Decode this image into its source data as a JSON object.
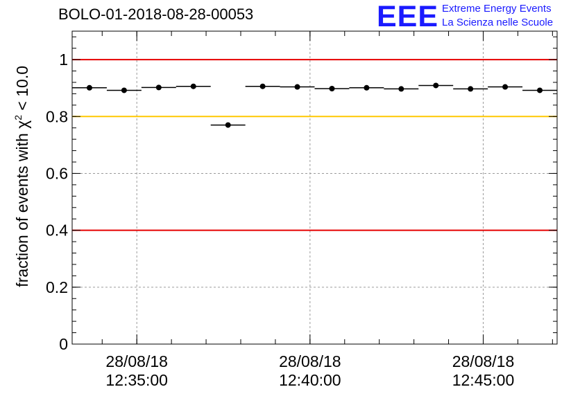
{
  "chart_data": {
    "type": "scatter",
    "title": "BOLO-01-2018-08-28-00053",
    "ylabel": {
      "prefix": "fraction of events with ",
      "chi": "χ",
      "sup": "2",
      "suffix": " < 10.0"
    },
    "xlabel": "",
    "ylim": [
      0,
      1.1
    ],
    "yticks": [
      0,
      0.2,
      0.4,
      0.6,
      0.8,
      1
    ],
    "ytick_labels": [
      "0",
      "0.2",
      "0.4",
      "0.6",
      "0.8",
      "1"
    ],
    "x_axis_type": "time",
    "x_range": [
      "12:33:08",
      "12:47:08"
    ],
    "xtick_values": [
      "12:35:00",
      "12:40:00",
      "12:45:00"
    ],
    "xtick_labels": [
      {
        "date": "28/08/18",
        "time": "12:35:00"
      },
      {
        "date": "28/08/18",
        "time": "12:40:00"
      },
      {
        "date": "28/08/18",
        "time": "12:45:00"
      }
    ],
    "reference_lines": [
      {
        "y": 1.0,
        "color": "#e60000"
      },
      {
        "y": 0.8,
        "color": "#ffc800"
      },
      {
        "y": 0.4,
        "color": "#e60000"
      }
    ],
    "grid": true,
    "bin_width_seconds": 60,
    "points": [
      {
        "t": "12:33:38",
        "y": 0.901
      },
      {
        "t": "12:34:38",
        "y": 0.892
      },
      {
        "t": "12:35:38",
        "y": 0.902
      },
      {
        "t": "12:36:38",
        "y": 0.906
      },
      {
        "t": "12:37:38",
        "y": 0.77
      },
      {
        "t": "12:38:38",
        "y": 0.906
      },
      {
        "t": "12:39:38",
        "y": 0.904
      },
      {
        "t": "12:40:38",
        "y": 0.898
      },
      {
        "t": "12:41:38",
        "y": 0.901
      },
      {
        "t": "12:42:38",
        "y": 0.897
      },
      {
        "t": "12:43:38",
        "y": 0.909
      },
      {
        "t": "12:44:38",
        "y": 0.897
      },
      {
        "t": "12:45:38",
        "y": 0.904
      },
      {
        "t": "12:46:38",
        "y": 0.892
      }
    ]
  },
  "logo": {
    "mark": "EEE",
    "line1": "Extreme Energy Events",
    "line2": "La Scienza nelle Scuole",
    "color": "#1a1aff"
  }
}
